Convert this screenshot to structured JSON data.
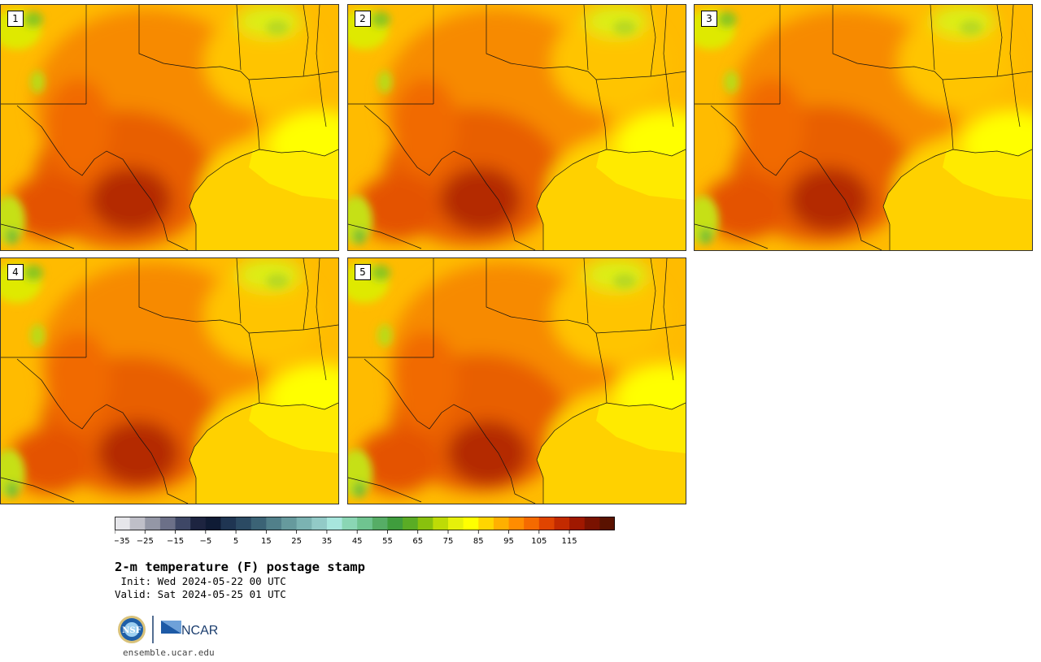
{
  "panels": [
    {
      "label": "1"
    },
    {
      "label": "2"
    },
    {
      "label": "3"
    },
    {
      "label": "4"
    },
    {
      "label": "5"
    }
  ],
  "colorbar": {
    "colors": [
      "#e6e6ea",
      "#bfbfc8",
      "#9497a6",
      "#6c7088",
      "#3e4766",
      "#1d2440",
      "#0f1b35",
      "#1f3552",
      "#2b4a63",
      "#3b6375",
      "#51808a",
      "#669a9d",
      "#7bb3b2",
      "#92cac7",
      "#a7e6dd",
      "#8ad6b4",
      "#6fc490",
      "#56ad66",
      "#3f9d3d",
      "#5aac25",
      "#89c10d",
      "#bedb06",
      "#e6f00a",
      "#ffff00",
      "#ffd500",
      "#ffb000",
      "#ff8c00",
      "#f56a00",
      "#e04400",
      "#c32a00",
      "#a01800",
      "#7a1200",
      "#5a1200"
    ],
    "tick_values": [
      -35,
      -25,
      -15,
      -5,
      5,
      15,
      25,
      35,
      45,
      55,
      65,
      75,
      85,
      95,
      105,
      115
    ],
    "tick_labels": [
      "−35",
      "−25",
      "−15",
      "−5",
      "5",
      "15",
      "25",
      "35",
      "45",
      "55",
      "65",
      "75",
      "85",
      "95",
      "105",
      "115"
    ],
    "min": -35,
    "step": 5
  },
  "title": {
    "main": "2-m temperature (F) postage stamp",
    "init": " Init: Wed 2024-05-22 00 UTC",
    "valid": "Valid: Sat 2024-05-25 01 UTC"
  },
  "logo": {
    "nsf_text": "NSF",
    "ncar_text": "NCAR"
  },
  "footer": {
    "site": "ensemble.ucar.edu"
  }
}
